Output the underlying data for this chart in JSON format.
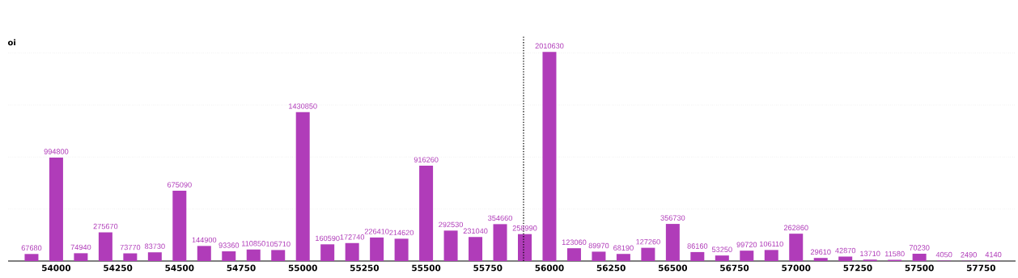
{
  "chart_data": {
    "type": "bar",
    "ylabel": "oi",
    "color": "#b03cb9",
    "data_labels": true,
    "grid": "y",
    "tick_labels": "x",
    "x": [
      53900,
      54000,
      54100,
      54200,
      54300,
      54400,
      54500,
      54600,
      54700,
      54800,
      54900,
      55000,
      55100,
      55200,
      55300,
      55400,
      55500,
      55600,
      55700,
      55800,
      55900,
      56000,
      56100,
      56200,
      56300,
      56400,
      56500,
      56600,
      56700,
      56800,
      56900,
      57000,
      57100,
      57200,
      57300,
      57400,
      57500,
      57600,
      57700,
      57800
    ],
    "values": [
      67680,
      994800,
      74940,
      275670,
      73770,
      83730,
      675090,
      144900,
      93360,
      110850,
      105710,
      1430850,
      160590,
      172740,
      226410,
      214620,
      916260,
      292530,
      231040,
      354660,
      258990,
      2010630,
      123060,
      89970,
      68190,
      127260,
      356730,
      86160,
      53250,
      99720,
      106110,
      262860,
      29610,
      42870,
      13710,
      11580,
      70230,
      4050,
      2490,
      4140
    ],
    "xlim": [
      53805,
      57890
    ],
    "xticks": [
      54000,
      54250,
      54500,
      54750,
      55000,
      55250,
      55500,
      55750,
      56000,
      56250,
      56500,
      56750,
      57000,
      57250,
      57500,
      57750
    ],
    "ylim": [
      0,
      2160000
    ],
    "yticks": [
      {
        "value": 500000,
        "label": null
      },
      {
        "value": 1000000,
        "label": null
      },
      {
        "value": 1500000,
        "label": null
      },
      {
        "value": 2000000,
        "label": null
      }
    ],
    "ref_lines": [
      {
        "axis": "x",
        "value": 55895,
        "color": "#000000",
        "line_style": "dotted"
      }
    ]
  }
}
